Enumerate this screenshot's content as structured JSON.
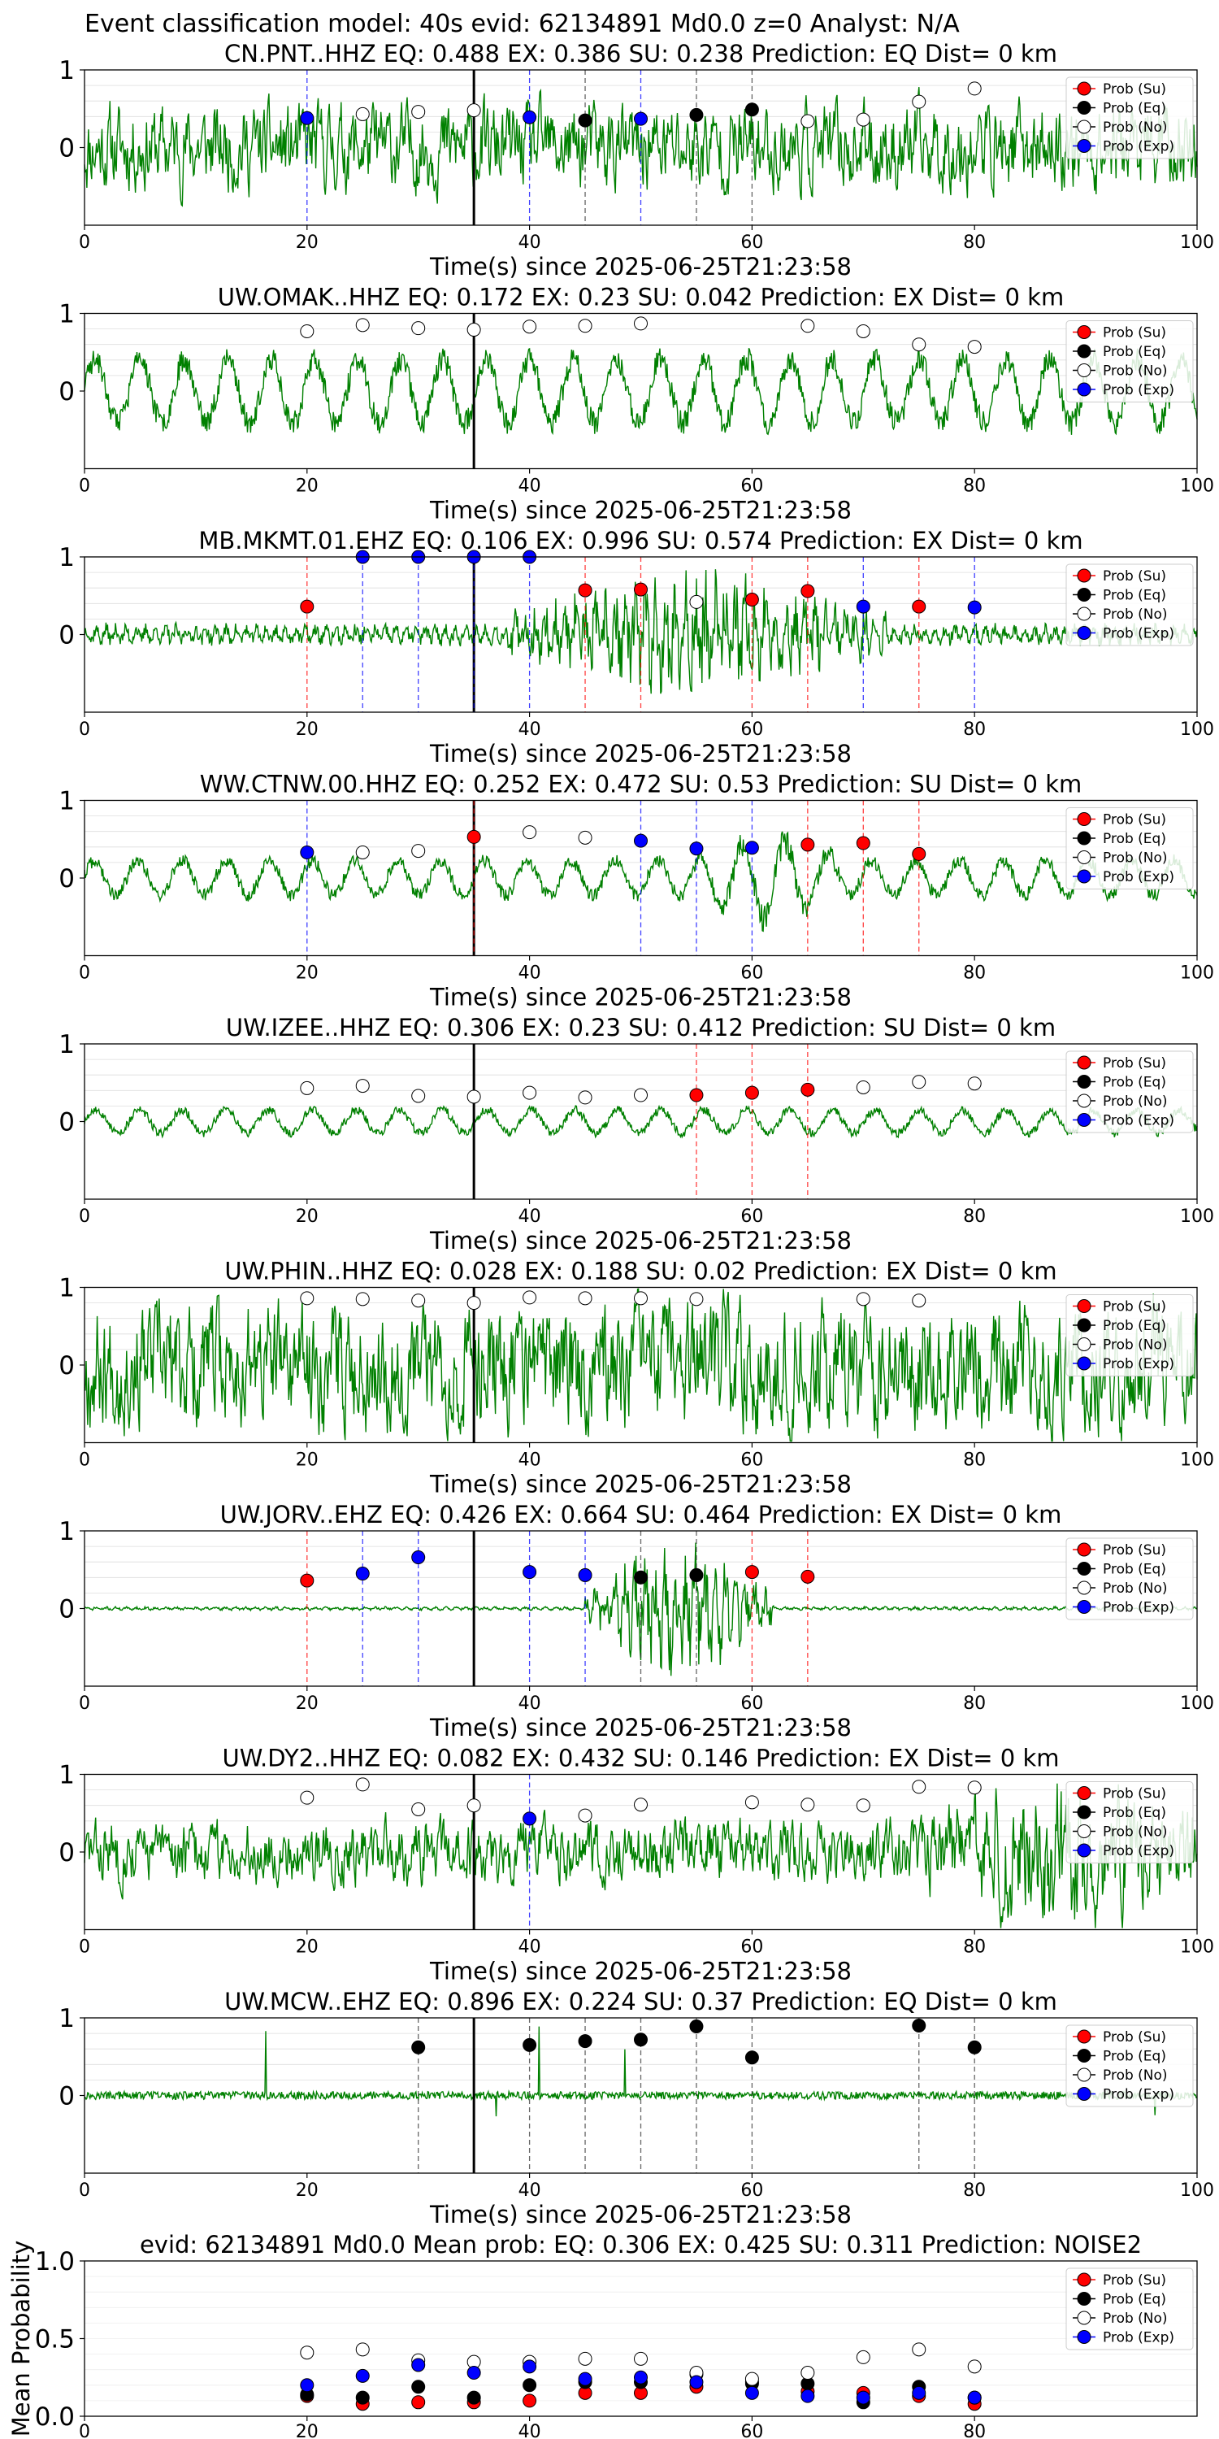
{
  "figure": {
    "suptitle": "Event classification model: 40s evid: 62134891 Md0.0 z=0 Analyst: N/A"
  },
  "legend": [
    {
      "label": "Prob (Su)",
      "color": "#ff0000"
    },
    {
      "label": "Prob (Eq)",
      "color": "#000000"
    },
    {
      "label": "Prob (No)",
      "color": "#ffffff"
    },
    {
      "label": "Prob (Exp)",
      "color": "#0000ff"
    }
  ],
  "colors": {
    "waveform": "#008000",
    "su": "#ff0000",
    "eq": "#000000",
    "no": "#ffffff",
    "exp": "#0000ff"
  },
  "chart_data": [
    {
      "type": "line",
      "title": "CN.PNT..HHZ   EQ: 0.488  EX: 0.386  SU: 0.238   Prediction: EQ    Dist= 0 km",
      "xlabel": "Time(s) since 2025-06-25T21:23:58",
      "xlim": [
        0,
        100
      ],
      "ylim": [
        -1,
        1
      ],
      "xticks": [
        "0",
        "20",
        "40",
        "60",
        "80",
        "100"
      ],
      "yticks": [
        "0",
        "1"
      ],
      "origin_line_x": 35,
      "waveform": {
        "amp": 0.42,
        "style": "noisy",
        "seed": 11
      },
      "markers": [
        {
          "x": 20,
          "y": 0.38,
          "class": "exp"
        },
        {
          "x": 25,
          "y": 0.43,
          "class": "no"
        },
        {
          "x": 30,
          "y": 0.46,
          "class": "no"
        },
        {
          "x": 35,
          "y": 0.48,
          "class": "no"
        },
        {
          "x": 40,
          "y": 0.39,
          "class": "exp"
        },
        {
          "x": 45,
          "y": 0.35,
          "class": "eq"
        },
        {
          "x": 50,
          "y": 0.37,
          "class": "exp"
        },
        {
          "x": 55,
          "y": 0.42,
          "class": "eq"
        },
        {
          "x": 60,
          "y": 0.49,
          "class": "eq"
        },
        {
          "x": 65,
          "y": 0.34,
          "class": "no"
        },
        {
          "x": 70,
          "y": 0.36,
          "class": "no"
        },
        {
          "x": 75,
          "y": 0.59,
          "class": "no"
        },
        {
          "x": 80,
          "y": 0.76,
          "class": "no"
        }
      ]
    },
    {
      "type": "line",
      "title": "UW.OMAK..HHZ   EQ: 0.172  EX: 0.23  SU: 0.042   Prediction: EX    Dist= 0 km",
      "xlabel": "Time(s) since 2025-06-25T21:23:58",
      "xlim": [
        0,
        100
      ],
      "ylim": [
        -1,
        1
      ],
      "xticks": [
        "0",
        "20",
        "40",
        "60",
        "80",
        "100"
      ],
      "yticks": [
        "0",
        "1"
      ],
      "origin_line_x": 35,
      "waveform": {
        "amp": 0.55,
        "style": "wavy",
        "seed": 23
      },
      "markers": [
        {
          "x": 20,
          "y": 0.77,
          "class": "no"
        },
        {
          "x": 25,
          "y": 0.85,
          "class": "no"
        },
        {
          "x": 30,
          "y": 0.81,
          "class": "no"
        },
        {
          "x": 35,
          "y": 0.79,
          "class": "no"
        },
        {
          "x": 40,
          "y": 0.83,
          "class": "no"
        },
        {
          "x": 45,
          "y": 0.84,
          "class": "no"
        },
        {
          "x": 50,
          "y": 0.87,
          "class": "no"
        },
        {
          "x": 65,
          "y": 0.84,
          "class": "no"
        },
        {
          "x": 70,
          "y": 0.77,
          "class": "no"
        },
        {
          "x": 75,
          "y": 0.6,
          "class": "no"
        },
        {
          "x": 80,
          "y": 0.57,
          "class": "no"
        }
      ]
    },
    {
      "type": "line",
      "title": "MB.MKMT.01.EHZ   EQ: 0.106  EX: 0.996  SU: 0.574   Prediction: EX    Dist= 0 km",
      "xlabel": "Time(s) since 2025-06-25T21:23:58",
      "xlim": [
        0,
        100
      ],
      "ylim": [
        -1,
        1
      ],
      "xticks": [
        "0",
        "20",
        "40",
        "60",
        "80",
        "100"
      ],
      "yticks": [
        "0",
        "1"
      ],
      "origin_line_x": 35,
      "waveform": {
        "amp": 0.12,
        "style": "burst",
        "burst_start": 38,
        "burst_end": 72,
        "burst_amp": 0.75,
        "seed": 37
      },
      "markers": [
        {
          "x": 20,
          "y": 0.36,
          "class": "su"
        },
        {
          "x": 25,
          "y": 1.0,
          "class": "exp"
        },
        {
          "x": 30,
          "y": 1.0,
          "class": "exp"
        },
        {
          "x": 35,
          "y": 1.0,
          "class": "exp"
        },
        {
          "x": 40,
          "y": 1.0,
          "class": "exp"
        },
        {
          "x": 45,
          "y": 0.57,
          "class": "su"
        },
        {
          "x": 50,
          "y": 0.58,
          "class": "su"
        },
        {
          "x": 55,
          "y": 0.42,
          "class": "no"
        },
        {
          "x": 60,
          "y": 0.45,
          "class": "su"
        },
        {
          "x": 65,
          "y": 0.56,
          "class": "su"
        },
        {
          "x": 70,
          "y": 0.36,
          "class": "exp"
        },
        {
          "x": 75,
          "y": 0.36,
          "class": "su"
        },
        {
          "x": 80,
          "y": 0.35,
          "class": "exp"
        }
      ]
    },
    {
      "type": "line",
      "title": "WW.CTNW.00.HHZ   EQ: 0.252  EX: 0.472  SU: 0.53   Prediction: SU    Dist= 0 km",
      "xlabel": "Time(s) since 2025-06-25T21:23:58",
      "xlim": [
        0,
        100
      ],
      "ylim": [
        -1,
        1
      ],
      "xticks": [
        "0",
        "20",
        "40",
        "60",
        "80",
        "100"
      ],
      "yticks": [
        "0",
        "1"
      ],
      "origin_line_x": 35,
      "waveform": {
        "amp": 0.3,
        "style": "wavy",
        "burst_start": 55,
        "burst_end": 68,
        "burst_amp": 0.7,
        "seed": 41
      },
      "markers": [
        {
          "x": 20,
          "y": 0.33,
          "class": "exp"
        },
        {
          "x": 25,
          "y": 0.33,
          "class": "no"
        },
        {
          "x": 30,
          "y": 0.35,
          "class": "no"
        },
        {
          "x": 35,
          "y": 0.53,
          "class": "su"
        },
        {
          "x": 40,
          "y": 0.59,
          "class": "no"
        },
        {
          "x": 45,
          "y": 0.52,
          "class": "no"
        },
        {
          "x": 50,
          "y": 0.48,
          "class": "exp"
        },
        {
          "x": 55,
          "y": 0.38,
          "class": "exp"
        },
        {
          "x": 60,
          "y": 0.39,
          "class": "exp"
        },
        {
          "x": 65,
          "y": 0.43,
          "class": "su"
        },
        {
          "x": 70,
          "y": 0.45,
          "class": "su"
        },
        {
          "x": 75,
          "y": 0.31,
          "class": "su"
        }
      ]
    },
    {
      "type": "line",
      "title": "UW.IZEE..HHZ   EQ: 0.306  EX: 0.23  SU: 0.412   Prediction: SU    Dist= 0 km",
      "xlabel": "Time(s) since 2025-06-25T21:23:58",
      "xlim": [
        0,
        100
      ],
      "ylim": [
        -1,
        1
      ],
      "xticks": [
        "0",
        "20",
        "40",
        "60",
        "80",
        "100"
      ],
      "yticks": [
        "0",
        "1"
      ],
      "origin_line_x": 35,
      "waveform": {
        "amp": 0.2,
        "style": "wavy",
        "seed": 53
      },
      "markers": [
        {
          "x": 20,
          "y": 0.43,
          "class": "no"
        },
        {
          "x": 25,
          "y": 0.46,
          "class": "no"
        },
        {
          "x": 30,
          "y": 0.33,
          "class": "no"
        },
        {
          "x": 35,
          "y": 0.32,
          "class": "no"
        },
        {
          "x": 40,
          "y": 0.37,
          "class": "no"
        },
        {
          "x": 45,
          "y": 0.31,
          "class": "no"
        },
        {
          "x": 50,
          "y": 0.34,
          "class": "no"
        },
        {
          "x": 55,
          "y": 0.34,
          "class": "su"
        },
        {
          "x": 60,
          "y": 0.37,
          "class": "su"
        },
        {
          "x": 65,
          "y": 0.41,
          "class": "su"
        },
        {
          "x": 70,
          "y": 0.44,
          "class": "no"
        },
        {
          "x": 75,
          "y": 0.51,
          "class": "no"
        },
        {
          "x": 80,
          "y": 0.49,
          "class": "no"
        }
      ]
    },
    {
      "type": "line",
      "title": "UW.PHIN..HHZ   EQ: 0.028  EX: 0.188  SU: 0.02   Prediction: EX    Dist= 0 km",
      "xlabel": "Time(s) since 2025-06-25T21:23:58",
      "xlim": [
        0,
        100
      ],
      "ylim": [
        -1,
        1
      ],
      "xticks": [
        "0",
        "20",
        "40",
        "60",
        "80",
        "100"
      ],
      "yticks": [
        "0",
        "1"
      ],
      "origin_line_x": 35,
      "waveform": {
        "amp": 0.6,
        "style": "noisy",
        "seed": 67
      },
      "markers": [
        {
          "x": 20,
          "y": 0.86,
          "class": "no"
        },
        {
          "x": 25,
          "y": 0.85,
          "class": "no"
        },
        {
          "x": 30,
          "y": 0.83,
          "class": "no"
        },
        {
          "x": 35,
          "y": 0.8,
          "class": "no"
        },
        {
          "x": 40,
          "y": 0.87,
          "class": "no"
        },
        {
          "x": 45,
          "y": 0.86,
          "class": "no"
        },
        {
          "x": 50,
          "y": 0.86,
          "class": "no"
        },
        {
          "x": 55,
          "y": 0.85,
          "class": "no"
        },
        {
          "x": 70,
          "y": 0.85,
          "class": "no"
        },
        {
          "x": 75,
          "y": 0.83,
          "class": "no"
        }
      ]
    },
    {
      "type": "line",
      "title": "UW.JORV..EHZ   EQ: 0.426  EX: 0.664  SU: 0.464   Prediction: EX    Dist= 0 km",
      "xlabel": "Time(s) since 2025-06-25T21:23:58",
      "xlim": [
        0,
        100
      ],
      "ylim": [
        -1,
        1
      ],
      "xticks": [
        "0",
        "20",
        "40",
        "60",
        "80",
        "100"
      ],
      "yticks": [
        "0",
        "1"
      ],
      "origin_line_x": 35,
      "waveform": {
        "amp": 0.02,
        "style": "burst",
        "burst_start": 45,
        "burst_end": 62,
        "burst_amp": 0.85,
        "seed": 71
      },
      "markers": [
        {
          "x": 20,
          "y": 0.36,
          "class": "su"
        },
        {
          "x": 25,
          "y": 0.45,
          "class": "exp"
        },
        {
          "x": 30,
          "y": 0.66,
          "class": "exp"
        },
        {
          "x": 40,
          "y": 0.47,
          "class": "exp"
        },
        {
          "x": 45,
          "y": 0.43,
          "class": "exp"
        },
        {
          "x": 50,
          "y": 0.4,
          "class": "eq"
        },
        {
          "x": 55,
          "y": 0.43,
          "class": "eq"
        },
        {
          "x": 60,
          "y": 0.47,
          "class": "su"
        },
        {
          "x": 65,
          "y": 0.41,
          "class": "su"
        }
      ]
    },
    {
      "type": "line",
      "title": "UW.DY2..HHZ   EQ: 0.082  EX: 0.432  SU: 0.146   Prediction: EX    Dist= 0 km",
      "xlabel": "Time(s) since 2025-06-25T21:23:58",
      "xlim": [
        0,
        100
      ],
      "ylim": [
        -1,
        1
      ],
      "xticks": [
        "0",
        "20",
        "40",
        "60",
        "80",
        "100"
      ],
      "yticks": [
        "0",
        "1"
      ],
      "origin_line_x": 35,
      "waveform": {
        "amp": 0.3,
        "style": "noisy",
        "burst_start": 75,
        "burst_end": 100,
        "burst_amp": 0.75,
        "seed": 83
      },
      "markers": [
        {
          "x": 20,
          "y": 0.7,
          "class": "no"
        },
        {
          "x": 25,
          "y": 0.87,
          "class": "no"
        },
        {
          "x": 30,
          "y": 0.55,
          "class": "no"
        },
        {
          "x": 35,
          "y": 0.6,
          "class": "no"
        },
        {
          "x": 40,
          "y": 0.43,
          "class": "exp"
        },
        {
          "x": 45,
          "y": 0.47,
          "class": "no"
        },
        {
          "x": 50,
          "y": 0.61,
          "class": "no"
        },
        {
          "x": 60,
          "y": 0.64,
          "class": "no"
        },
        {
          "x": 65,
          "y": 0.61,
          "class": "no"
        },
        {
          "x": 70,
          "y": 0.6,
          "class": "no"
        },
        {
          "x": 75,
          "y": 0.84,
          "class": "no"
        },
        {
          "x": 80,
          "y": 0.83,
          "class": "no"
        }
      ]
    },
    {
      "type": "line",
      "title": "UW.MCW..EHZ   EQ: 0.896  EX: 0.224  SU: 0.37   Prediction: EQ    Dist= 0 km",
      "xlabel": "Time(s) since 2025-06-25T21:23:58",
      "xlim": [
        0,
        100
      ],
      "ylim": [
        -1,
        1
      ],
      "xticks": [
        "0",
        "20",
        "40",
        "60",
        "80",
        "100"
      ],
      "yticks": [
        "0",
        "1"
      ],
      "origin_line_x": 35,
      "waveform": {
        "amp": 0.05,
        "style": "spiky",
        "seed": 97
      },
      "markers": [
        {
          "x": 30,
          "y": 0.62,
          "class": "eq"
        },
        {
          "x": 40,
          "y": 0.65,
          "class": "eq"
        },
        {
          "x": 45,
          "y": 0.7,
          "class": "eq"
        },
        {
          "x": 50,
          "y": 0.72,
          "class": "eq"
        },
        {
          "x": 55,
          "y": 0.89,
          "class": "eq"
        },
        {
          "x": 60,
          "y": 0.49,
          "class": "eq"
        },
        {
          "x": 75,
          "y": 0.9,
          "class": "eq"
        },
        {
          "x": 80,
          "y": 0.62,
          "class": "eq"
        }
      ]
    },
    {
      "type": "scatter",
      "title": "evid: 62134891  Md0.0   Mean prob:   EQ: 0.306  EX: 0.425  SU: 0.311   Prediction: NOISE2",
      "ylabel": "Mean Probability",
      "xlim": [
        0,
        100
      ],
      "ylim": [
        0,
        1
      ],
      "xticks": [
        "0",
        "20",
        "40",
        "60",
        "80"
      ],
      "yticks": [
        "0.0",
        "0.5",
        "1.0"
      ],
      "series": [
        {
          "name": "Prob (Su)",
          "class": "su",
          "x": [
            20,
            25,
            30,
            35,
            40,
            45,
            50,
            55,
            60,
            65,
            70,
            75,
            80
          ],
          "y": [
            0.13,
            0.08,
            0.09,
            0.09,
            0.1,
            0.15,
            0.15,
            0.19,
            0.22,
            0.16,
            0.15,
            0.13,
            0.08
          ]
        },
        {
          "name": "Prob (Eq)",
          "class": "eq",
          "x": [
            20,
            25,
            30,
            35,
            40,
            45,
            50,
            55,
            60,
            65,
            70,
            75,
            80
          ],
          "y": [
            0.14,
            0.12,
            0.19,
            0.12,
            0.2,
            0.22,
            0.22,
            0.27,
            0.21,
            0.21,
            0.09,
            0.19,
            0.12
          ]
        },
        {
          "name": "Prob (No)",
          "class": "no",
          "x": [
            20,
            25,
            30,
            35,
            40,
            45,
            50,
            55,
            60,
            65,
            70,
            75,
            80
          ],
          "y": [
            0.41,
            0.43,
            0.36,
            0.35,
            0.35,
            0.37,
            0.37,
            0.28,
            0.24,
            0.28,
            0.38,
            0.43,
            0.32
          ]
        },
        {
          "name": "Prob (Exp)",
          "class": "exp",
          "x": [
            20,
            25,
            30,
            35,
            40,
            45,
            50,
            55,
            60,
            65,
            70,
            75,
            80
          ],
          "y": [
            0.2,
            0.26,
            0.33,
            0.28,
            0.32,
            0.24,
            0.25,
            0.22,
            0.15,
            0.13,
            0.12,
            0.15,
            0.12
          ]
        }
      ]
    }
  ]
}
